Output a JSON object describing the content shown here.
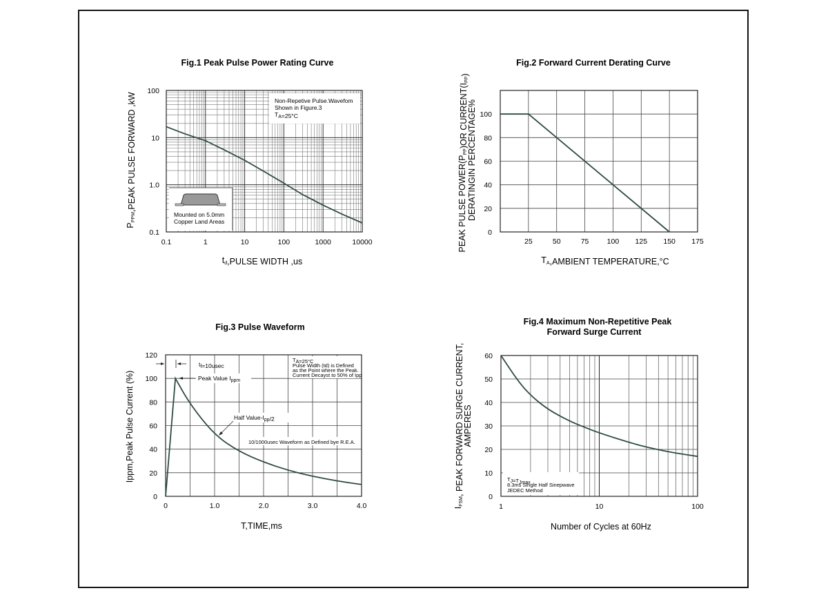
{
  "chart_data": [
    {
      "type": "line",
      "title": "Fig.1  Peak Pulse Power Rating Curve",
      "xlabel": "td,PULSE WIDTH ,us",
      "ylabel": "PPPM,PEAK PULSE  FORWARD ,kW",
      "x_scale": "log",
      "y_scale": "log",
      "xlim": [
        0.1,
        10000
      ],
      "ylim": [
        0.1,
        100
      ],
      "x_ticks": [
        "0.1",
        "1",
        "10",
        "100",
        "1000",
        "10000"
      ],
      "y_ticks": [
        "0.1",
        "1.0",
        "10",
        "100"
      ],
      "grid": true,
      "annotations": [
        "Non-Repetive  Pulse.Wavefom",
        "Shown in Figure.3",
        "TA=25°C",
        "Mounted on 5.0mm",
        "Copper Land Areas"
      ],
      "series": [
        {
          "x": [
            0.1,
            0.3,
            1,
            3,
            10,
            30,
            100,
            300,
            1000,
            3000,
            10000
          ],
          "y": [
            17,
            12,
            8.6,
            5.5,
            3.3,
            1.95,
            1.08,
            0.62,
            0.37,
            0.24,
            0.155
          ]
        }
      ]
    },
    {
      "type": "line",
      "title": "Fig.2  Forward Current Derating Curve",
      "xlabel": "TA,AMBIENT TEMPERATURE,°C",
      "ylabel": [
        "PEAK PULSE  POWER(PPP)OR CURRENT(IPP)",
        "DERATINGIN PERCENTAGE%"
      ],
      "xlim": [
        0,
        175
      ],
      "ylim": [
        0,
        120
      ],
      "x_ticks": [
        "25",
        "50",
        "75",
        "100",
        "125",
        "150",
        "175"
      ],
      "y_ticks": [
        "0",
        "20",
        "40",
        "60",
        "80",
        "100"
      ],
      "grid": true,
      "series": [
        {
          "x": [
            0,
            25,
            150
          ],
          "y": [
            100,
            100,
            0
          ]
        }
      ]
    },
    {
      "type": "line",
      "title": "Fig.3  Pulse Waveform",
      "xlabel": "T,TIME,ms",
      "ylabel": "Ippm,Peak Pulse Current (%)",
      "xlim": [
        0,
        4.0
      ],
      "ylim": [
        0,
        120
      ],
      "x_ticks": [
        "0",
        "1.0",
        "2.0",
        "3.0",
        "4.0"
      ],
      "y_ticks": [
        "0",
        "20",
        "40",
        "60",
        "80",
        "100",
        "120"
      ],
      "grid": true,
      "annotations": [
        "tf=10usec",
        "Peak  Value   Ippm",
        "Half  Value-Ipp/2",
        "10/1000usec  Waveform as Defined bye R.E.A.",
        "TA=25°C",
        "Pulse   Width (td) is  Defined",
        "as the Point  where the Peak.",
        "Current  Decayst to 50% of Ipp"
      ],
      "series": [
        {
          "x": [
            0,
            0.2,
            0.5,
            1.0,
            1.5,
            2.0,
            2.5,
            3.0,
            3.5,
            4.0
          ],
          "y": [
            0,
            100,
            78,
            52,
            38,
            29,
            22,
            17,
            13,
            10
          ]
        }
      ]
    },
    {
      "type": "line",
      "title": [
        "Fig.4  Maximum Non-Repetitive Peak",
        "Forward Surge Current"
      ],
      "xlabel": "Number of Cycles at 60Hz",
      "ylabel": [
        "IFSM, PEAK FORWARD SURGE CURRENT,",
        "AMPERES"
      ],
      "x_scale": "log",
      "xlim": [
        1,
        100
      ],
      "ylim": [
        0,
        60
      ],
      "x_ticks": [
        "1",
        "10",
        "100"
      ],
      "y_ticks": [
        "0",
        "10",
        "20",
        "30",
        "40",
        "50",
        "60"
      ],
      "grid": true,
      "annotations": [
        "TJ=TJmax",
        "8.3ms Single Half  Sinepwave",
        "JEDEC Method"
      ],
      "series": [
        {
          "x": [
            1,
            1.5,
            2,
            3,
            5,
            7,
            10,
            20,
            30,
            50,
            70,
            100
          ],
          "y": [
            60,
            49,
            43,
            37,
            32,
            29.5,
            27,
            23,
            21,
            19,
            18,
            17
          ]
        }
      ]
    }
  ]
}
